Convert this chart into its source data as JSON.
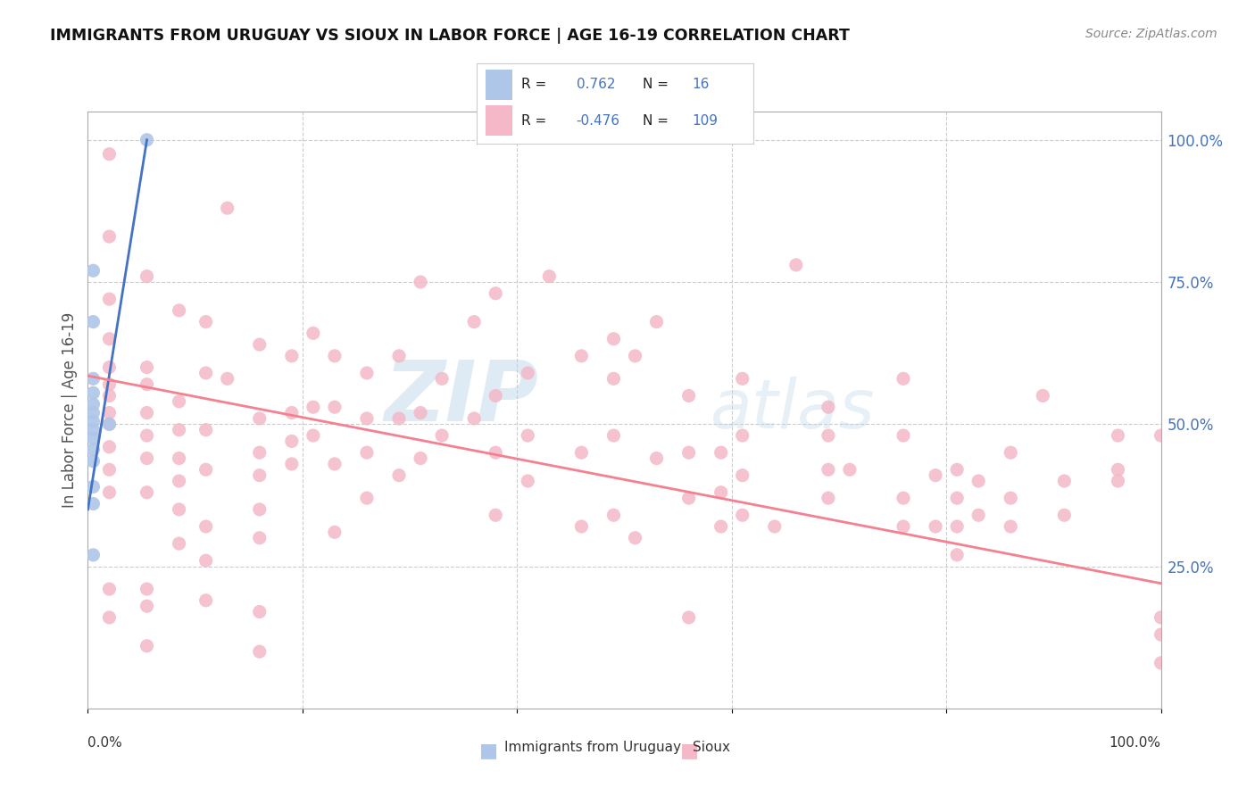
{
  "title": "IMMIGRANTS FROM URUGUAY VS SIOUX IN LABOR FORCE | AGE 16-19 CORRELATION CHART",
  "source": "Source: ZipAtlas.com",
  "ylabel": "In Labor Force | Age 16-19",
  "ylabel_right_ticks": [
    "100.0%",
    "75.0%",
    "50.0%",
    "25.0%"
  ],
  "ylabel_right_vals": [
    1.0,
    0.75,
    0.5,
    0.25
  ],
  "xlim": [
    0.0,
    1.0
  ],
  "ylim": [
    0.0,
    1.05
  ],
  "uruguay_color": "#aec6e8",
  "sioux_color": "#f4b8c8",
  "uruguay_line_color": "#4472c4",
  "sioux_line_color": "#f48090",
  "legend_text_color": "#4472c4",
  "uruguay_R": "0.762",
  "uruguay_N": "16",
  "sioux_R": "-0.476",
  "sioux_N": "109",
  "uruguay_points": [
    [
      0.005,
      0.77
    ],
    [
      0.005,
      0.68
    ],
    [
      0.005,
      0.58
    ],
    [
      0.005,
      0.555
    ],
    [
      0.005,
      0.535
    ],
    [
      0.005,
      0.52
    ],
    [
      0.005,
      0.505
    ],
    [
      0.005,
      0.49
    ],
    [
      0.005,
      0.475
    ],
    [
      0.005,
      0.455
    ],
    [
      0.005,
      0.435
    ],
    [
      0.005,
      0.39
    ],
    [
      0.005,
      0.36
    ],
    [
      0.005,
      0.27
    ],
    [
      0.02,
      0.5
    ],
    [
      0.055,
      1.0
    ]
  ],
  "sioux_points": [
    [
      0.02,
      0.975
    ],
    [
      0.02,
      0.83
    ],
    [
      0.02,
      0.72
    ],
    [
      0.02,
      0.65
    ],
    [
      0.02,
      0.6
    ],
    [
      0.02,
      0.57
    ],
    [
      0.02,
      0.55
    ],
    [
      0.02,
      0.52
    ],
    [
      0.02,
      0.5
    ],
    [
      0.02,
      0.46
    ],
    [
      0.02,
      0.42
    ],
    [
      0.02,
      0.38
    ],
    [
      0.02,
      0.21
    ],
    [
      0.02,
      0.16
    ],
    [
      0.055,
      0.76
    ],
    [
      0.055,
      0.6
    ],
    [
      0.055,
      0.57
    ],
    [
      0.055,
      0.52
    ],
    [
      0.055,
      0.48
    ],
    [
      0.055,
      0.44
    ],
    [
      0.055,
      0.38
    ],
    [
      0.055,
      0.21
    ],
    [
      0.055,
      0.18
    ],
    [
      0.055,
      0.11
    ],
    [
      0.085,
      0.7
    ],
    [
      0.085,
      0.54
    ],
    [
      0.085,
      0.49
    ],
    [
      0.085,
      0.44
    ],
    [
      0.085,
      0.4
    ],
    [
      0.085,
      0.35
    ],
    [
      0.085,
      0.29
    ],
    [
      0.11,
      0.68
    ],
    [
      0.11,
      0.59
    ],
    [
      0.11,
      0.49
    ],
    [
      0.11,
      0.42
    ],
    [
      0.11,
      0.32
    ],
    [
      0.11,
      0.26
    ],
    [
      0.11,
      0.19
    ],
    [
      0.13,
      0.88
    ],
    [
      0.13,
      0.58
    ],
    [
      0.16,
      0.64
    ],
    [
      0.16,
      0.51
    ],
    [
      0.16,
      0.45
    ],
    [
      0.16,
      0.41
    ],
    [
      0.16,
      0.35
    ],
    [
      0.16,
      0.3
    ],
    [
      0.16,
      0.17
    ],
    [
      0.16,
      0.1
    ],
    [
      0.19,
      0.62
    ],
    [
      0.19,
      0.52
    ],
    [
      0.19,
      0.47
    ],
    [
      0.19,
      0.43
    ],
    [
      0.21,
      0.66
    ],
    [
      0.21,
      0.53
    ],
    [
      0.21,
      0.48
    ],
    [
      0.23,
      0.62
    ],
    [
      0.23,
      0.53
    ],
    [
      0.23,
      0.43
    ],
    [
      0.23,
      0.31
    ],
    [
      0.26,
      0.59
    ],
    [
      0.26,
      0.51
    ],
    [
      0.26,
      0.45
    ],
    [
      0.26,
      0.37
    ],
    [
      0.29,
      0.62
    ],
    [
      0.29,
      0.51
    ],
    [
      0.29,
      0.41
    ],
    [
      0.31,
      0.75
    ],
    [
      0.31,
      0.52
    ],
    [
      0.31,
      0.44
    ],
    [
      0.33,
      0.58
    ],
    [
      0.33,
      0.48
    ],
    [
      0.36,
      0.68
    ],
    [
      0.36,
      0.51
    ],
    [
      0.38,
      0.73
    ],
    [
      0.38,
      0.55
    ],
    [
      0.38,
      0.45
    ],
    [
      0.38,
      0.34
    ],
    [
      0.41,
      0.59
    ],
    [
      0.41,
      0.48
    ],
    [
      0.41,
      0.4
    ],
    [
      0.43,
      0.76
    ],
    [
      0.46,
      0.62
    ],
    [
      0.46,
      0.45
    ],
    [
      0.46,
      0.32
    ],
    [
      0.49,
      0.65
    ],
    [
      0.49,
      0.58
    ],
    [
      0.49,
      0.48
    ],
    [
      0.49,
      0.34
    ],
    [
      0.51,
      0.62
    ],
    [
      0.51,
      0.3
    ],
    [
      0.53,
      0.68
    ],
    [
      0.53,
      0.44
    ],
    [
      0.56,
      0.55
    ],
    [
      0.56,
      0.45
    ],
    [
      0.56,
      0.37
    ],
    [
      0.56,
      0.16
    ],
    [
      0.59,
      0.45
    ],
    [
      0.59,
      0.38
    ],
    [
      0.59,
      0.32
    ],
    [
      0.61,
      0.58
    ],
    [
      0.61,
      0.48
    ],
    [
      0.61,
      0.41
    ],
    [
      0.61,
      0.34
    ],
    [
      0.64,
      0.32
    ],
    [
      0.66,
      0.78
    ],
    [
      0.69,
      0.53
    ],
    [
      0.69,
      0.48
    ],
    [
      0.69,
      0.42
    ],
    [
      0.69,
      0.37
    ],
    [
      0.71,
      0.42
    ],
    [
      0.76,
      0.58
    ],
    [
      0.76,
      0.48
    ],
    [
      0.76,
      0.37
    ],
    [
      0.76,
      0.32
    ],
    [
      0.79,
      0.41
    ],
    [
      0.79,
      0.32
    ],
    [
      0.81,
      0.42
    ],
    [
      0.81,
      0.37
    ],
    [
      0.81,
      0.32
    ],
    [
      0.81,
      0.27
    ],
    [
      0.83,
      0.4
    ],
    [
      0.83,
      0.34
    ],
    [
      0.86,
      0.45
    ],
    [
      0.86,
      0.37
    ],
    [
      0.86,
      0.32
    ],
    [
      0.89,
      0.55
    ],
    [
      0.91,
      0.4
    ],
    [
      0.91,
      0.34
    ],
    [
      0.96,
      0.48
    ],
    [
      0.96,
      0.42
    ],
    [
      0.96,
      0.4
    ],
    [
      1.0,
      0.48
    ],
    [
      1.0,
      0.16
    ],
    [
      1.0,
      0.13
    ],
    [
      1.0,
      0.08
    ]
  ],
  "watermark_line1": "ZIP",
  "watermark_line2": "atlas",
  "background_color": "#ffffff",
  "grid_color": "#cccccc"
}
